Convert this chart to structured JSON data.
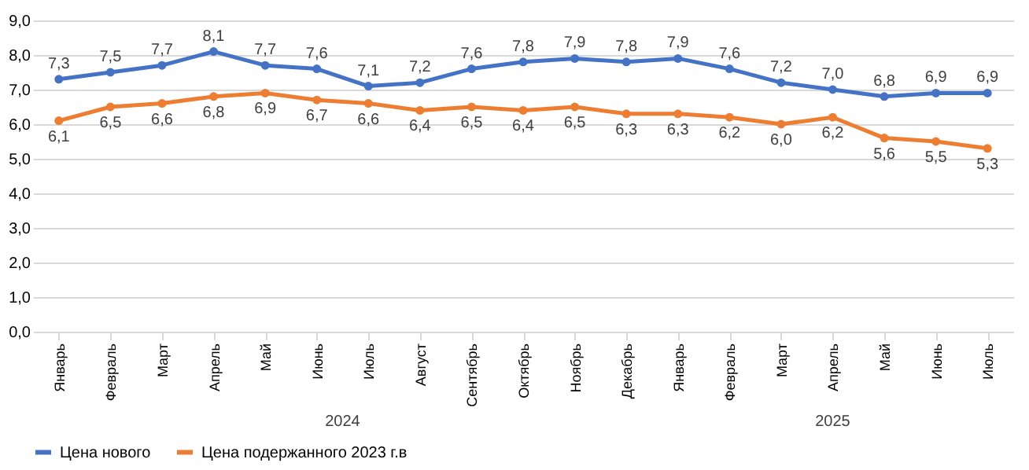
{
  "chart_data": {
    "type": "line",
    "categories": [
      "Январь",
      "Февраль",
      "Март",
      "Апрель",
      "Май",
      "Июнь",
      "Июль",
      "Август",
      "Сентябрь",
      "Октябрь",
      "Ноябрь",
      "Декабрь",
      "Январь",
      "Февраль",
      "Март",
      "Апрель",
      "Май",
      "Июнь",
      "Июль"
    ],
    "series": [
      {
        "name": "Цена нового",
        "color": "#4472c4",
        "values": [
          7.3,
          7.5,
          7.7,
          8.1,
          7.7,
          7.6,
          7.1,
          7.2,
          7.6,
          7.8,
          7.9,
          7.8,
          7.9,
          7.6,
          7.2,
          7.0,
          6.8,
          6.9,
          6.9
        ],
        "value_labels": [
          "7,3",
          "7,5",
          "7,7",
          "8,1",
          "7,7",
          "7,6",
          "7,1",
          "7,2",
          "7,6",
          "7,8",
          "7,9",
          "7,8",
          "7,9",
          "7,6",
          "7,2",
          "7,0",
          "6,8",
          "6,9",
          "6,9"
        ]
      },
      {
        "name": "Цена подержанного 2023 г.в",
        "color": "#ed7d31",
        "values": [
          6.1,
          6.5,
          6.6,
          6.8,
          6.9,
          6.7,
          6.6,
          6.4,
          6.5,
          6.4,
          6.5,
          6.3,
          6.3,
          6.2,
          6.0,
          6.2,
          5.6,
          5.5,
          5.3
        ],
        "value_labels": [
          "6,1",
          "6,5",
          "6,6",
          "6,8",
          "6,9",
          "6,7",
          "6,6",
          "6,4",
          "6,5",
          "6,4",
          "6,5",
          "6,3",
          "6,3",
          "6,2",
          "6,0",
          "6,2",
          "5,6",
          "5,5",
          "5,3"
        ]
      }
    ],
    "ylim": [
      0,
      9
    ],
    "yticks": [
      {
        "value": 0,
        "label": "0,0"
      },
      {
        "value": 1,
        "label": "1,0"
      },
      {
        "value": 2,
        "label": "2,0"
      },
      {
        "value": 3,
        "label": "3,0"
      },
      {
        "value": 4,
        "label": "4,0"
      },
      {
        "value": 5,
        "label": "5,0"
      },
      {
        "value": 6,
        "label": "6,0"
      },
      {
        "value": 7,
        "label": "7,0"
      },
      {
        "value": 8,
        "label": "8,0"
      },
      {
        "value": 9,
        "label": "9,0"
      }
    ],
    "annotations": [
      "2024",
      "2025"
    ],
    "grid": "y",
    "legend": "bottom",
    "marker": "circle",
    "line_style": "solid"
  }
}
